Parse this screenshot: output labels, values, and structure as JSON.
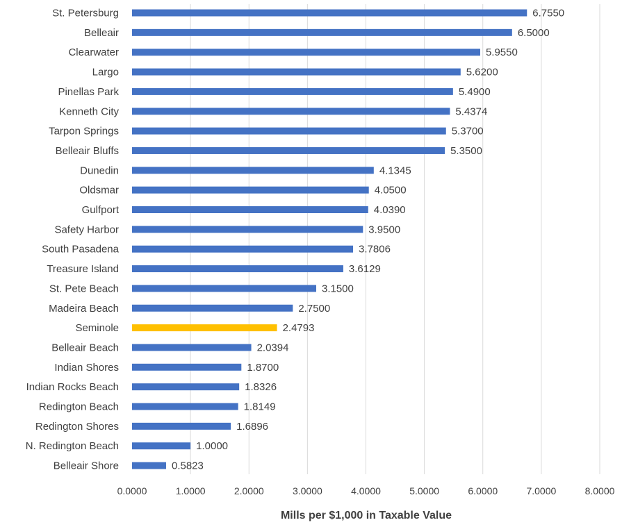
{
  "chart_data": {
    "type": "bar",
    "orientation": "horizontal",
    "categories": [
      "St. Petersburg",
      "Belleair",
      "Clearwater",
      "Largo",
      "Pinellas Park",
      "Kenneth City",
      "Tarpon Springs",
      "Belleair Bluffs",
      "Dunedin",
      "Oldsmar",
      "Gulfport",
      "Safety Harbor",
      "South Pasadena",
      "Treasure Island",
      "St. Pete Beach",
      "Madeira Beach",
      "Seminole",
      "Belleair Beach",
      "Indian Shores",
      "Indian Rocks Beach",
      "Redington Beach",
      "Redington Shores",
      "N. Redington Beach",
      "Belleair Shore"
    ],
    "values": [
      6.755,
      6.5,
      5.955,
      5.62,
      5.49,
      5.4374,
      5.37,
      5.35,
      4.1345,
      4.05,
      4.039,
      3.95,
      3.7806,
      3.6129,
      3.15,
      2.75,
      2.4793,
      2.0394,
      1.87,
      1.8326,
      1.8149,
      1.6896,
      1.0,
      0.5823
    ],
    "data_labels": [
      "6.7550",
      "6.5000",
      "5.9550",
      "5.6200",
      "5.4900",
      "5.4374",
      "5.3700",
      "5.3500",
      "4.1345",
      "4.0500",
      "4.0390",
      "3.9500",
      "3.7806",
      "3.6129",
      "3.1500",
      "2.7500",
      "2.4793",
      "2.0394",
      "1.8700",
      "1.8326",
      "1.8149",
      "1.6896",
      "1.0000",
      "0.5823"
    ],
    "highlight_category": "Seminole",
    "xlabel": "Mills per $1,000 in Taxable Value",
    "ylabel": "",
    "title": "",
    "xlim": [
      0,
      8
    ],
    "x_ticks": [
      0,
      1,
      2,
      3,
      4,
      5,
      6,
      7,
      8
    ],
    "x_tick_labels": [
      "0.0000",
      "1.0000",
      "2.0000",
      "3.0000",
      "4.0000",
      "5.0000",
      "6.0000",
      "7.0000",
      "8.0000"
    ],
    "grid": "vertical",
    "legend": "none",
    "colors": {
      "bar": "#4472C4",
      "highlight": "#FFC000",
      "grid": "#D9D9D9",
      "text": "#404040"
    }
  }
}
